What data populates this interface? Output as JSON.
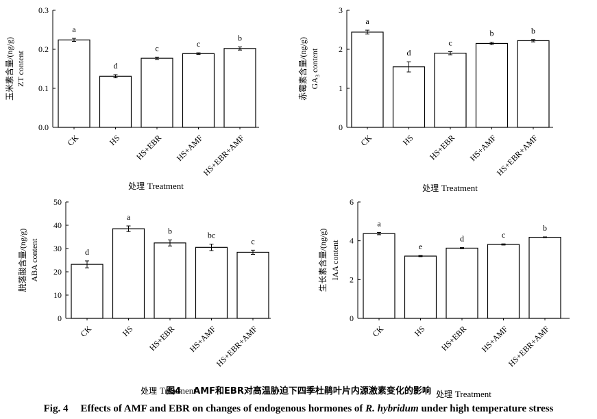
{
  "figure": {
    "caption_cn_label": "图4",
    "caption_cn_text": "AMF和EBR对高温胁迫下四季杜鹃叶片内源激素变化的影响",
    "caption_en_label": "Fig. 4",
    "caption_en_pre": "Effects of AMF and EBR on changes of endogenous hormones of ",
    "caption_en_species": "R. hybridum",
    "caption_en_post": " under high temperature stress"
  },
  "chart_data": [
    {
      "type": "bar",
      "categories": [
        "CK",
        "HS",
        "HS+EBR",
        "HS+AMF",
        "HS+EBR+AMF"
      ],
      "values": [
        0.224,
        0.131,
        0.177,
        0.189,
        0.202
      ],
      "errors": [
        0.004,
        0.004,
        0.003,
        0.002,
        0.004
      ],
      "letters": [
        "a",
        "d",
        "c",
        "c",
        "b"
      ],
      "ylabel_cn": "玉米素含量/(ng/g)",
      "ylabel_en": "ZT content",
      "xlabel_cn": "处理",
      "xlabel_en": "Treatment",
      "ylim": [
        0,
        0.3
      ],
      "yticks": [
        "0.0",
        "0.1",
        "0.2",
        "0.3"
      ]
    },
    {
      "type": "bar",
      "categories": [
        "CK",
        "HS",
        "HS+EBR",
        "HS+AMF",
        "HS+EBR+AMF"
      ],
      "values": [
        2.44,
        1.55,
        1.9,
        2.15,
        2.22
      ],
      "errors": [
        0.05,
        0.13,
        0.04,
        0.03,
        0.03
      ],
      "letters": [
        "a",
        "d",
        "c",
        "b",
        "b"
      ],
      "ylabel_cn": "赤霉素含量/(ng/g)",
      "ylabel_en": "GA",
      "ylabel_en_sub": "3",
      "ylabel_en_post": " content",
      "xlabel_cn": "处理",
      "xlabel_en": "Treatment",
      "ylim": [
        0,
        3
      ],
      "yticks": [
        "0",
        "1",
        "2",
        "3"
      ]
    },
    {
      "type": "bar",
      "categories": [
        "CK",
        "HS",
        "HS+EBR",
        "HS+AMF",
        "HS+EBR+AMF"
      ],
      "values": [
        23.2,
        38.5,
        32.4,
        30.5,
        28.4
      ],
      "errors": [
        1.5,
        1.2,
        1.3,
        1.4,
        0.9
      ],
      "letters": [
        "d",
        "a",
        "b",
        "bc",
        "c"
      ],
      "ylabel_cn": "脱落酸含量/(ng/g)",
      "ylabel_en": "ABA content",
      "xlabel_cn": "处理",
      "xlabel_en": "Treatment",
      "ylim": [
        0,
        50
      ],
      "yticks": [
        "0",
        "10",
        "20",
        "30",
        "40",
        "50"
      ]
    },
    {
      "type": "bar",
      "categories": [
        "CK",
        "HS",
        "HS+EBR",
        "HS+AMF",
        "HS+EBR+AMF"
      ],
      "values": [
        4.37,
        3.21,
        3.62,
        3.81,
        4.18
      ],
      "errors": [
        0.06,
        0.03,
        0.03,
        0.03,
        0.02
      ],
      "letters": [
        "a",
        "e",
        "d",
        "c",
        "b"
      ],
      "ylabel_cn": "生长素含量/(ng/g)",
      "ylabel_en": "IAA content",
      "xlabel_cn": "处理",
      "xlabel_en": "Treatment",
      "ylim": [
        0,
        6
      ],
      "yticks": [
        "0",
        "2",
        "4",
        "6"
      ]
    }
  ]
}
